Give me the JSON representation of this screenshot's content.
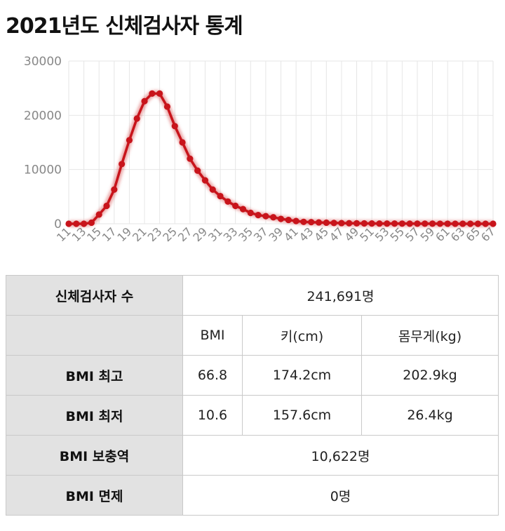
{
  "title": "2021년도 신체검사자 통계",
  "colors": {
    "line": "#c8141b",
    "grid": "#e6e6e6",
    "axis_text": "#888888"
  },
  "chart_data": {
    "type": "line",
    "title": "2021년도 신체검사자 통계",
    "xlabel": "",
    "ylabel": "",
    "x": [
      11,
      12,
      13,
      14,
      15,
      16,
      17,
      18,
      19,
      20,
      21,
      22,
      23,
      24,
      25,
      26,
      27,
      28,
      29,
      30,
      31,
      32,
      33,
      34,
      35,
      36,
      37,
      38,
      39,
      40,
      41,
      42,
      43,
      44,
      45,
      46,
      47,
      48,
      49,
      50,
      51,
      52,
      53,
      54,
      55,
      56,
      57,
      58,
      59,
      60,
      61,
      62,
      63,
      64,
      65,
      66,
      67
    ],
    "x_tick_labels": [
      "11",
      "13",
      "15",
      "17",
      "19",
      "21",
      "23",
      "25",
      "27",
      "29",
      "31",
      "33",
      "35",
      "37",
      "39",
      "41",
      "43",
      "45",
      "47",
      "49",
      "51",
      "53",
      "55",
      "57",
      "59",
      "61",
      "63",
      "65",
      "67"
    ],
    "y_ticks": [
      0,
      10000,
      20000,
      30000
    ],
    "ylim": [
      0,
      30000
    ],
    "grid": true,
    "legend": "none",
    "series": [
      {
        "name": "",
        "values": [
          0,
          0,
          0,
          200,
          1700,
          3300,
          6300,
          11000,
          15400,
          19400,
          22600,
          24000,
          24000,
          21600,
          18000,
          15000,
          12000,
          9800,
          8000,
          6300,
          5100,
          4100,
          3300,
          2700,
          2000,
          1600,
          1400,
          1200,
          900,
          700,
          500,
          350,
          300,
          250,
          200,
          150,
          120,
          100,
          80,
          60,
          50,
          40,
          35,
          30,
          25,
          20,
          18,
          15,
          12,
          10,
          8,
          6,
          5,
          4,
          3,
          2,
          1
        ]
      }
    ]
  },
  "stats_table": {
    "count_label": "신체검사자 수",
    "count_value": "241,691명",
    "col_bmi": "BMI",
    "col_height": "키(cm)",
    "col_weight": "몸무게(kg)",
    "rows": [
      {
        "label": "BMI 최고",
        "bmi": "66.8",
        "height": "174.2cm",
        "weight": "202.9kg"
      },
      {
        "label": "BMI 최저",
        "bmi": "10.6",
        "height": "157.6cm",
        "weight": "26.4kg"
      }
    ],
    "reserve_label": "BMI 보충역",
    "reserve_value": "10,622명",
    "exempt_label": "BMI 면제",
    "exempt_value": "0명"
  }
}
